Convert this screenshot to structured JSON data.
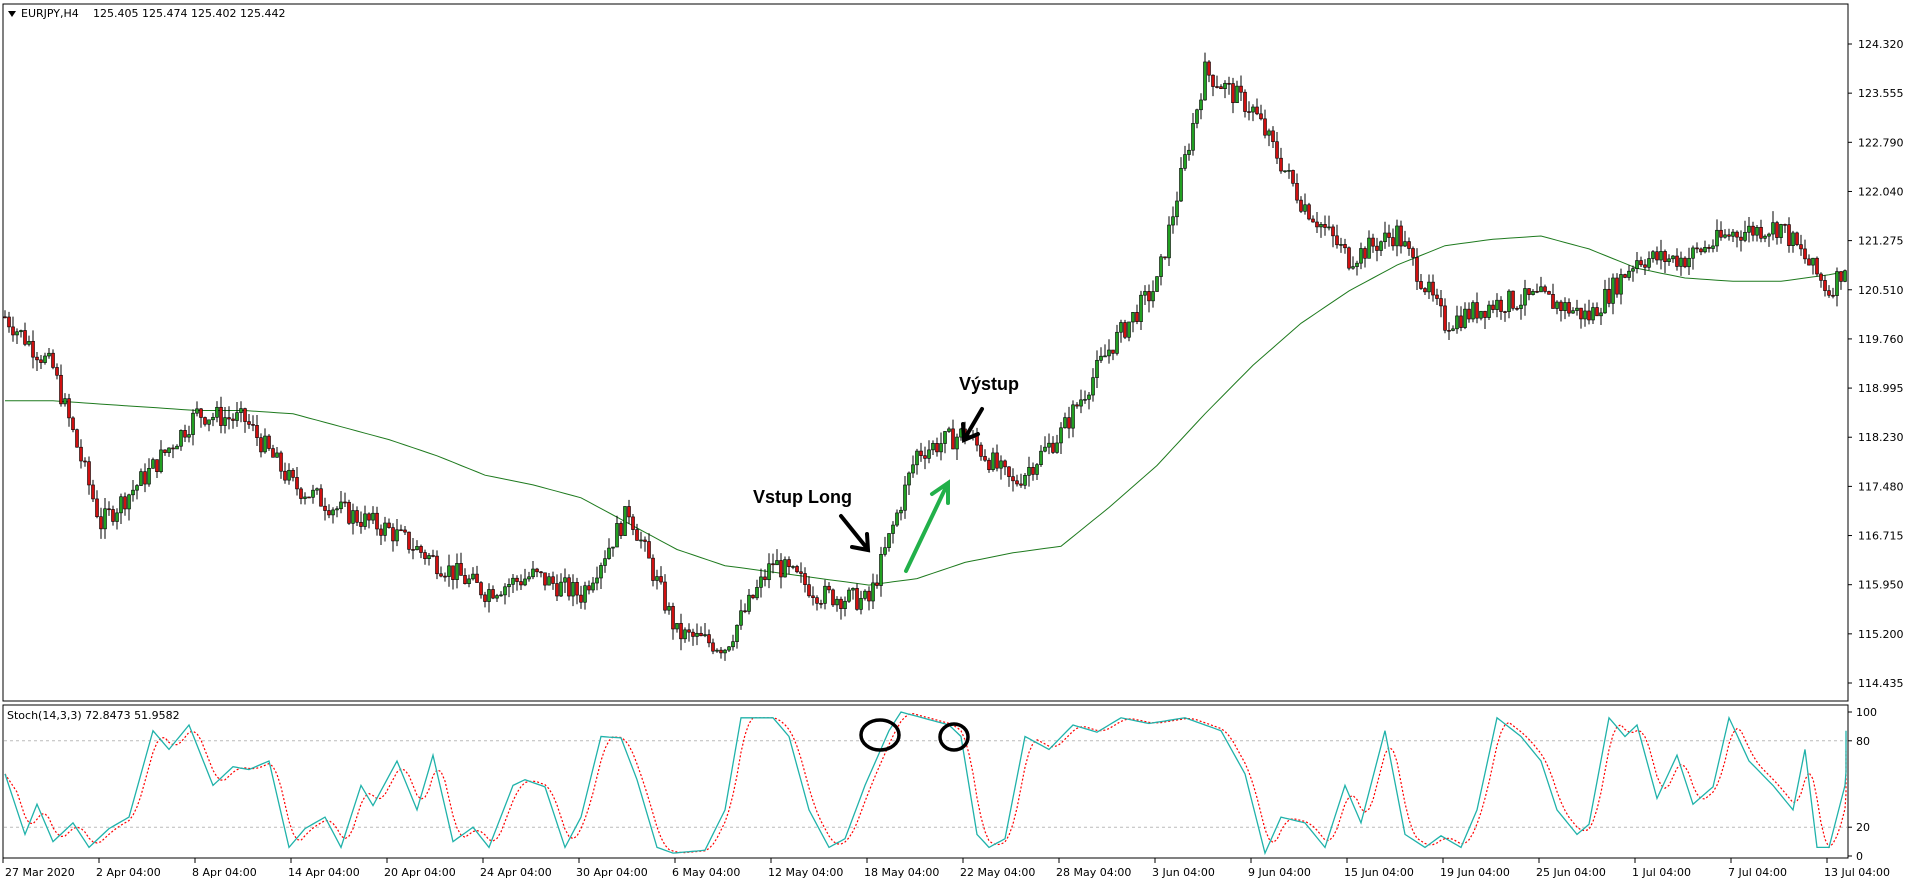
{
  "header": {
    "symbol_label": "EURJPY,H4",
    "ohlc": "125.405 125.474 125.402 125.442",
    "dropdown_icon": "triangle-down-icon"
  },
  "indicator": {
    "label": "Stoch(14,3,3) 72.8473 51.9582",
    "levels": [
      80,
      20
    ]
  },
  "annotations": {
    "entry": "Vstup Long",
    "exit": "Výstup"
  },
  "colors": {
    "bull": "#22a022",
    "bear": "#d01010",
    "ma": "#1e7a1e",
    "stoch_k": "#20b2aa",
    "stoch_d": "#ff0000",
    "green_arrow": "#22b04a"
  },
  "chart_data": {
    "type": "candlestick",
    "price_axis_ticks": [
      "124.320",
      "123.555",
      "122.790",
      "122.040",
      "121.275",
      "120.510",
      "119.760",
      "118.995",
      "118.230",
      "117.480",
      "116.715",
      "115.950",
      "115.200",
      "114.435"
    ],
    "ylim": [
      114.435,
      124.32
    ],
    "time_axis_ticks": [
      "27 Mar 2020",
      "2 Apr 04:00",
      "8 Apr 04:00",
      "14 Apr 04:00",
      "20 Apr 04:00",
      "24 Apr 04:00",
      "30 Apr 04:00",
      "6 May 04:00",
      "12 May 04:00",
      "18 May 04:00",
      "22 May 04:00",
      "28 May 04:00",
      "3 Jun 04:00",
      "9 Jun 04:00",
      "15 Jun 04:00",
      "19 Jun 04:00",
      "25 Jun 04:00",
      "1 Jul 04:00",
      "7 Jul 04:00",
      "13 Jul 04:00"
    ],
    "bars_per_sample": 12,
    "close_samples": [
      120.1,
      119.3,
      116.9,
      117.7,
      118.6,
      118.5,
      117.5,
      117.1,
      116.8,
      116.3,
      115.85,
      116.1,
      115.8,
      117.1,
      115.2,
      115.0,
      116.3,
      115.8,
      115.7,
      118.0,
      118.3,
      117.5,
      118.3,
      119.6,
      120.6,
      123.9,
      123.3,
      121.9,
      121.0,
      121.4,
      120.0,
      120.3,
      120.4,
      120.1,
      121.0,
      121.0,
      121.4,
      121.5,
      120.5,
      121.7
    ],
    "ma_samples": [
      118.8,
      118.8,
      118.75,
      118.7,
      118.65,
      118.65,
      118.6,
      118.4,
      118.2,
      117.95,
      117.65,
      117.5,
      117.3,
      116.9,
      116.5,
      116.25,
      116.15,
      116.05,
      115.95,
      116.05,
      116.3,
      116.45,
      116.55,
      117.15,
      117.8,
      118.6,
      119.35,
      120.0,
      120.5,
      120.9,
      121.2,
      121.3,
      121.35,
      121.15,
      120.85,
      120.7,
      120.65,
      120.65,
      120.75,
      120.9
    ],
    "stoch": {
      "ylim": [
        0,
        100
      ],
      "axis_ticks": [
        "100",
        "80",
        "20",
        "0"
      ],
      "k_points": [
        [
          0,
          57
        ],
        [
          5,
          15
        ],
        [
          8,
          36
        ],
        [
          12,
          10
        ],
        [
          17,
          23
        ],
        [
          21,
          6
        ],
        [
          26,
          19
        ],
        [
          31,
          27
        ],
        [
          37,
          87
        ],
        [
          41,
          74
        ],
        [
          46,
          91
        ],
        [
          52,
          49
        ],
        [
          57,
          62
        ],
        [
          61,
          60
        ],
        [
          66,
          66
        ],
        [
          71,
          6
        ],
        [
          75,
          19
        ],
        [
          80,
          27
        ],
        [
          84,
          6
        ],
        [
          89,
          49
        ],
        [
          92,
          35
        ],
        [
          98,
          66
        ],
        [
          103,
          32
        ],
        [
          107,
          70
        ],
        [
          112,
          10
        ],
        [
          117,
          20
        ],
        [
          121,
          6
        ],
        [
          127,
          49
        ],
        [
          130,
          53
        ],
        [
          135,
          48
        ],
        [
          140,
          6
        ],
        [
          144,
          27
        ],
        [
          149,
          83
        ],
        [
          154,
          82
        ],
        [
          158,
          53
        ],
        [
          163,
          6
        ],
        [
          167,
          2
        ],
        [
          175,
          4
        ],
        [
          180,
          32
        ],
        [
          184,
          96
        ],
        [
          192,
          96
        ],
        [
          196,
          83
        ],
        [
          201,
          32
        ],
        [
          206,
          6
        ],
        [
          210,
          12
        ],
        [
          215,
          49
        ],
        [
          221,
          87
        ],
        [
          224,
          100
        ],
        [
          236,
          91
        ],
        [
          239,
          83
        ],
        [
          243,
          15
        ],
        [
          246,
          6
        ],
        [
          250,
          12
        ],
        [
          255,
          83
        ],
        [
          261,
          74
        ],
        [
          267,
          91
        ],
        [
          273,
          86
        ],
        [
          279,
          96
        ],
        [
          286,
          92
        ],
        [
          295,
          96
        ],
        [
          304,
          87
        ],
        [
          310,
          57
        ],
        [
          315,
          2
        ],
        [
          319,
          27
        ],
        [
          325,
          23
        ],
        [
          330,
          6
        ],
        [
          335,
          49
        ],
        [
          339,
          23
        ],
        [
          345,
          87
        ],
        [
          350,
          15
        ],
        [
          355,
          6
        ],
        [
          359,
          14
        ],
        [
          364,
          6
        ],
        [
          368,
          32
        ],
        [
          373,
          96
        ],
        [
          379,
          83
        ],
        [
          384,
          66
        ],
        [
          388,
          32
        ],
        [
          393,
          15
        ],
        [
          396,
          22
        ],
        [
          401,
          96
        ],
        [
          405,
          83
        ],
        [
          408,
          91
        ],
        [
          413,
          40
        ],
        [
          418,
          70
        ],
        [
          422,
          36
        ],
        [
          427,
          48
        ],
        [
          431,
          96
        ],
        [
          436,
          66
        ],
        [
          442,
          49
        ],
        [
          447,
          32
        ],
        [
          450,
          74
        ],
        [
          453,
          6
        ],
        [
          456,
          6
        ],
        [
          460,
          49
        ],
        [
          464,
          87
        ]
      ]
    }
  }
}
